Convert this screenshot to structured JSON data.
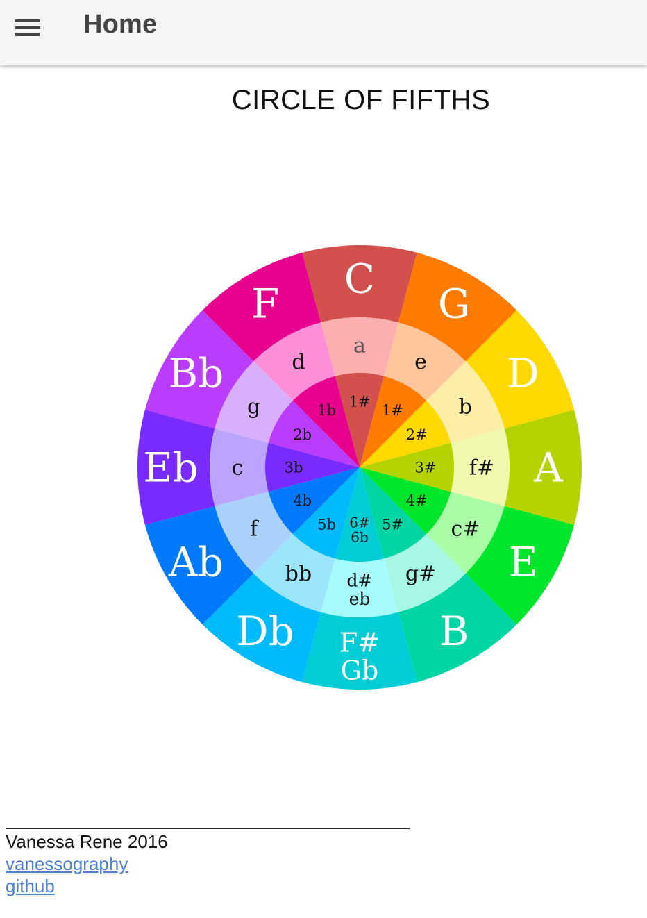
{
  "appbar": {
    "title": "Home",
    "menu_icon": "hamburger-menu-icon"
  },
  "page": {
    "title": "CIRCLE OF FIFTHS"
  },
  "wheel": {
    "segments": [
      {
        "major": [
          "C"
        ],
        "minor": [
          "a"
        ],
        "signature": [
          "1#"
        ],
        "major_color": "#d2514d",
        "minor_color": "#fdafaf",
        "sig_color": "#d2514d"
      },
      {
        "major": [
          "G"
        ],
        "minor": [
          "e"
        ],
        "signature": [
          "1#"
        ],
        "major_color": "#ff7b00",
        "minor_color": "#ffc69b",
        "sig_color": "#ff7b00"
      },
      {
        "major": [
          "D"
        ],
        "minor": [
          "b"
        ],
        "signature": [
          "2#"
        ],
        "major_color": "#ffd900",
        "minor_color": "#fdeea7",
        "sig_color": "#ffd900"
      },
      {
        "major": [
          "A"
        ],
        "minor": [
          "f#"
        ],
        "signature": [
          "3#"
        ],
        "major_color": "#b5d300",
        "minor_color": "#f1f9af",
        "sig_color": "#b5d300"
      },
      {
        "major": [
          "E"
        ],
        "minor": [
          "c#"
        ],
        "signature": [
          "4#"
        ],
        "major_color": "#00e62a",
        "minor_color": "#a9fda6",
        "sig_color": "#00e62a"
      },
      {
        "major": [
          "B"
        ],
        "minor": [
          "g#"
        ],
        "signature": [
          "5#"
        ],
        "major_color": "#00d6a4",
        "minor_color": "#a6f8e4",
        "sig_color": "#00d6a4"
      },
      {
        "major": [
          "F#",
          "Gb"
        ],
        "minor": [
          "d#",
          "eb"
        ],
        "signature": [
          "6#",
          "6b"
        ],
        "major_color": "#00cdd6",
        "minor_color": "#a6fbfd",
        "sig_color": "#00cdd6"
      },
      {
        "major": [
          "Db"
        ],
        "minor": [
          "bb"
        ],
        "signature": [
          "5b"
        ],
        "major_color": "#00bbfb",
        "minor_color": "#9be6fb",
        "sig_color": "#00bbfb"
      },
      {
        "major": [
          "Ab"
        ],
        "minor": [
          "f"
        ],
        "signature": [
          "4b"
        ],
        "major_color": "#0079fb",
        "minor_color": "#a9d1fb",
        "sig_color": "#0079fb"
      },
      {
        "major": [
          "Eb"
        ],
        "minor": [
          "c"
        ],
        "signature": [
          "3b"
        ],
        "major_color": "#782aff",
        "minor_color": "#baa4fd",
        "sig_color": "#782aff"
      },
      {
        "major": [
          "Bb"
        ],
        "minor": [
          "g"
        ],
        "signature": [
          "2b"
        ],
        "major_color": "#b93cff",
        "minor_color": "#d7affd",
        "sig_color": "#b93cff"
      },
      {
        "major": [
          "F"
        ],
        "minor": [
          "d"
        ],
        "signature": [
          "1b"
        ],
        "major_color": "#e8008e",
        "minor_color": "#fd8fd8",
        "sig_color": "#e8008e"
      }
    ]
  },
  "footer": {
    "separator": "____________________________________________",
    "credit": "Vanessa Rene 2016",
    "link_site": "vanessography",
    "link_github": "github"
  },
  "colors": {
    "appbar_bg": "#f5f5f5",
    "link": "#4a7fd4",
    "major_text": "#ffffff",
    "minor_text": "#111111"
  }
}
